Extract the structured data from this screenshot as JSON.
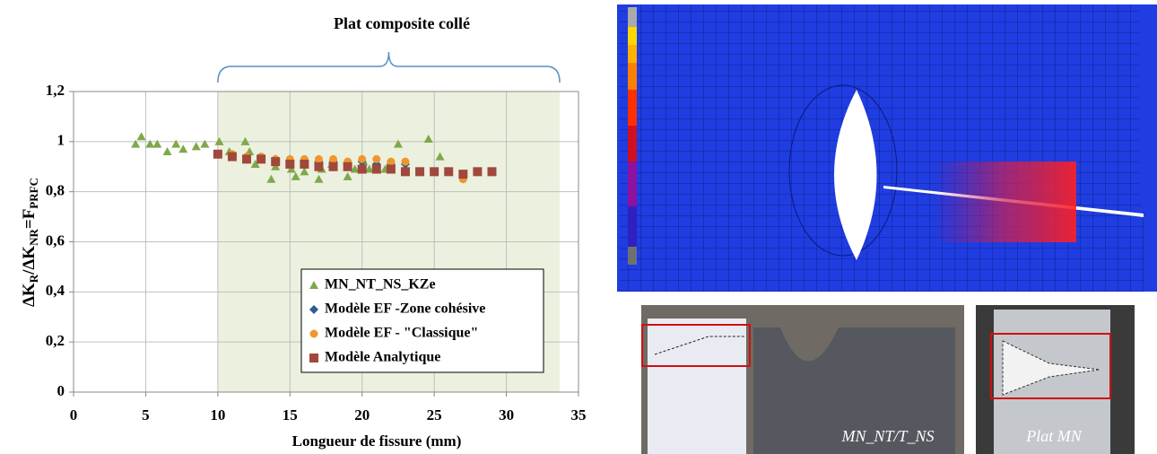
{
  "chart_data": {
    "type": "scatter",
    "annotation": "Plat composite collé",
    "highlight_xrange": [
      10,
      33.7
    ],
    "xlabel": "Longueur de fissure (mm)",
    "ylabel_parts": [
      "ΔK",
      "R",
      "/ΔK",
      "NR",
      "=F",
      "PRFC"
    ],
    "xlim": [
      0,
      35
    ],
    "xticks": [
      0,
      5,
      10,
      15,
      20,
      25,
      30,
      35
    ],
    "ylim": [
      0,
      1.2
    ],
    "yticks": [
      0,
      {
        "value": 0.2,
        "label": "0,2"
      },
      {
        "value": 0.4,
        "label": "0,4"
      },
      {
        "value": 0.6,
        "label": "0,6"
      },
      {
        "value": 0.8,
        "label": "0,8"
      },
      1,
      {
        "value": 1.2,
        "label": "1,2"
      }
    ],
    "grid": true,
    "series": [
      {
        "name": "MN_NT_NS_KZe",
        "color": "#7fa84a",
        "marker": "triangle",
        "x": [
          4.3,
          4.7,
          5.3,
          5.8,
          6.5,
          7.1,
          7.6,
          8.5,
          9.1,
          10.1,
          10.8,
          11.9,
          12.2,
          12.6,
          13.7,
          14.0,
          15.1,
          15.4,
          16.0,
          17.0,
          17.2,
          17.9,
          19.0,
          19.5,
          20.1,
          20.5,
          21.6,
          22.5,
          24.6,
          25.4
        ],
        "values": [
          0.99,
          1.02,
          0.99,
          0.99,
          0.96,
          0.99,
          0.97,
          0.98,
          0.99,
          1.0,
          0.96,
          1.0,
          0.96,
          0.91,
          0.85,
          0.9,
          0.89,
          0.86,
          0.88,
          0.85,
          0.89,
          0.91,
          0.86,
          0.89,
          0.92,
          0.89,
          0.89,
          0.99,
          1.01,
          0.94
        ]
      },
      {
        "name": "Modèle EF -Zone cohésive",
        "color": "#2e5d8e",
        "marker": "diamond",
        "x": [
          10,
          11,
          12,
          13,
          14,
          15,
          16,
          17,
          18,
          19,
          20,
          21,
          22,
          23
        ],
        "values": [
          0.95,
          0.94,
          0.94,
          0.93,
          0.93,
          0.92,
          0.92,
          0.92,
          0.92,
          0.91,
          0.92,
          0.91,
          0.91,
          0.91
        ]
      },
      {
        "name": "Modèle EF - \"Classique\"",
        "color": "#f0962c",
        "marker": "circle",
        "x": [
          10,
          11,
          12,
          13,
          14,
          15,
          16,
          17,
          18,
          19,
          20,
          21,
          22,
          23,
          27
        ],
        "values": [
          0.95,
          0.95,
          0.94,
          0.94,
          0.93,
          0.93,
          0.93,
          0.93,
          0.93,
          0.92,
          0.93,
          0.93,
          0.92,
          0.92,
          0.85
        ]
      },
      {
        "name": "Modèle Analytique",
        "color": "#a0483c",
        "marker": "square",
        "x": [
          10,
          11,
          12,
          13,
          14,
          15,
          16,
          17,
          18,
          19,
          20,
          21,
          22,
          23,
          24,
          25,
          26,
          27,
          28,
          29
        ],
        "values": [
          0.95,
          0.94,
          0.93,
          0.93,
          0.92,
          0.91,
          0.91,
          0.9,
          0.9,
          0.9,
          0.89,
          0.89,
          0.89,
          0.88,
          0.88,
          0.88,
          0.88,
          0.87,
          0.88,
          0.88
        ]
      }
    ]
  },
  "figure": {
    "photo_labels": [
      "MN_NT/T_NS",
      "Plat MN"
    ]
  }
}
